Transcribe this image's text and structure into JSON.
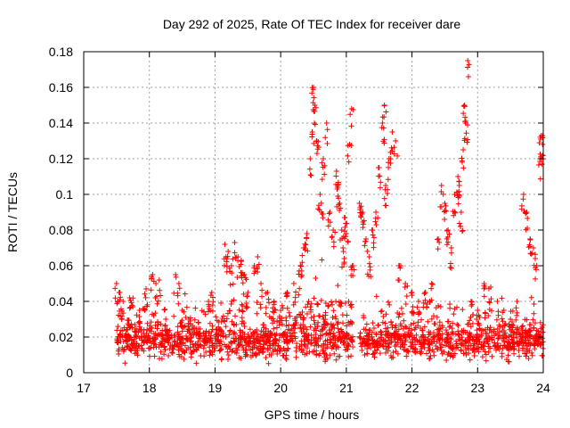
{
  "chart_data": {
    "type": "scatter",
    "title": "Day 292 of 2025, Rate Of TEC Index for receiver dare",
    "xlabel": "GPS time / hours",
    "ylabel": "ROTI / TECUs",
    "xlim": [
      17,
      24
    ],
    "ylim": [
      0,
      0.18
    ],
    "xticks": [
      "17",
      "18",
      "19",
      "20",
      "21",
      "22",
      "23",
      "24"
    ],
    "yticks": [
      "0",
      "0.02",
      "0.04",
      "0.06",
      "0.08",
      "0.1",
      "0.12",
      "0.14",
      "0.16",
      "0.18"
    ],
    "grid": true,
    "marker": "+",
    "series_color": "#ff0000",
    "series": [
      {
        "name": "ROTI",
        "points": [
          [
            17.5,
            0.05
          ],
          [
            17.55,
            0.045
          ],
          [
            17.6,
            0.04
          ],
          [
            17.7,
            0.042
          ],
          [
            17.85,
            0.035
          ],
          [
            17.95,
            0.047
          ],
          [
            18.05,
            0.055
          ],
          [
            18.1,
            0.05
          ],
          [
            18.15,
            0.052
          ],
          [
            18.25,
            0.03
          ],
          [
            18.4,
            0.055
          ],
          [
            18.45,
            0.05
          ],
          [
            18.5,
            0.035
          ],
          [
            18.6,
            0.03
          ],
          [
            18.75,
            0.028
          ],
          [
            18.9,
            0.04
          ],
          [
            18.95,
            0.045
          ],
          [
            19.15,
            0.072
          ],
          [
            19.2,
            0.068
          ],
          [
            19.25,
            0.06
          ],
          [
            19.3,
            0.073
          ],
          [
            19.35,
            0.065
          ],
          [
            19.4,
            0.063
          ],
          [
            19.45,
            0.055
          ],
          [
            19.5,
            0.045
          ],
          [
            19.6,
            0.06
          ],
          [
            19.65,
            0.065
          ],
          [
            19.7,
            0.05
          ],
          [
            19.8,
            0.045
          ],
          [
            19.9,
            0.04
          ],
          [
            20.0,
            0.035
          ],
          [
            20.1,
            0.045
          ],
          [
            20.2,
            0.05
          ],
          [
            20.3,
            0.06
          ],
          [
            20.35,
            0.07
          ],
          [
            20.4,
            0.078
          ],
          [
            20.45,
            0.12
          ],
          [
            20.48,
            0.135
          ],
          [
            20.5,
            0.16
          ],
          [
            20.52,
            0.15
          ],
          [
            20.55,
            0.13
          ],
          [
            20.6,
            0.1
          ],
          [
            20.62,
            0.09
          ],
          [
            20.65,
            0.12
          ],
          [
            20.7,
            0.14
          ],
          [
            20.75,
            0.09
          ],
          [
            20.8,
            0.08
          ],
          [
            20.85,
            0.113
          ],
          [
            20.87,
            0.105
          ],
          [
            20.9,
            0.095
          ],
          [
            20.93,
            0.08
          ],
          [
            20.95,
            0.07
          ],
          [
            20.98,
            0.087
          ],
          [
            21.0,
            0.078
          ],
          [
            21.05,
            0.128
          ],
          [
            21.08,
            0.148
          ],
          [
            21.1,
            0.06
          ],
          [
            21.2,
            0.095
          ],
          [
            21.25,
            0.09
          ],
          [
            21.3,
            0.075
          ],
          [
            21.35,
            0.065
          ],
          [
            21.4,
            0.08
          ],
          [
            21.45,
            0.09
          ],
          [
            21.5,
            0.115
          ],
          [
            21.55,
            0.14
          ],
          [
            21.58,
            0.15
          ],
          [
            21.6,
            0.105
          ],
          [
            21.65,
            0.12
          ],
          [
            21.7,
            0.135
          ],
          [
            21.75,
            0.13
          ],
          [
            21.8,
            0.06
          ],
          [
            21.9,
            0.05
          ],
          [
            22.0,
            0.045
          ],
          [
            22.1,
            0.04
          ],
          [
            22.2,
            0.045
          ],
          [
            22.3,
            0.05
          ],
          [
            22.4,
            0.075
          ],
          [
            22.45,
            0.105
          ],
          [
            22.5,
            0.095
          ],
          [
            22.55,
            0.08
          ],
          [
            22.6,
            0.07
          ],
          [
            22.65,
            0.1
          ],
          [
            22.7,
            0.11
          ],
          [
            22.72,
            0.105
          ],
          [
            22.75,
            0.09
          ],
          [
            22.78,
            0.125
          ],
          [
            22.8,
            0.15
          ],
          [
            22.82,
            0.14
          ],
          [
            22.85,
            0.175
          ],
          [
            22.9,
            0.04
          ],
          [
            23.0,
            0.035
          ],
          [
            23.1,
            0.05
          ],
          [
            23.2,
            0.048
          ],
          [
            23.3,
            0.04
          ],
          [
            23.4,
            0.035
          ],
          [
            23.5,
            0.03
          ],
          [
            23.6,
            0.04
          ],
          [
            23.7,
            0.1
          ],
          [
            23.75,
            0.09
          ],
          [
            23.8,
            0.075
          ],
          [
            23.85,
            0.07
          ],
          [
            23.9,
            0.06
          ],
          [
            23.95,
            0.12
          ],
          [
            23.97,
            0.133
          ],
          [
            23.99,
            0.128
          ]
        ],
        "baseline_band": {
          "x_range": [
            17.5,
            24.0
          ],
          "y_center": 0.018,
          "spread": 0.014
        }
      }
    ]
  }
}
